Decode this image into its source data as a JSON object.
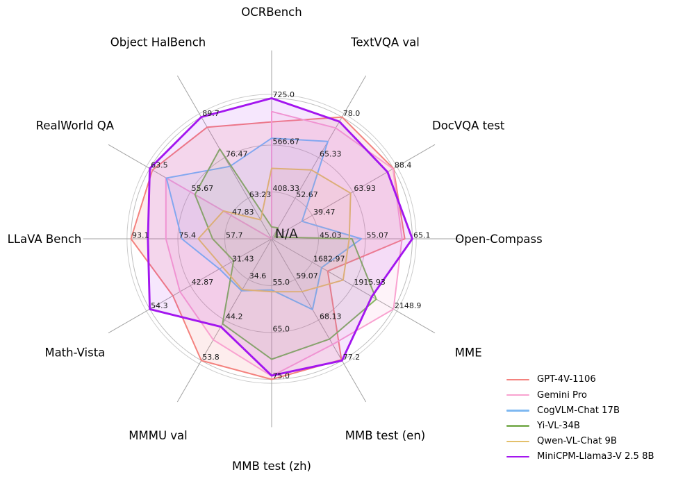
{
  "figure": {
    "background": "#ffffff",
    "center_label": "N/A"
  },
  "chart_data": {
    "type": "radar",
    "title": "",
    "center_label": "N/A",
    "grid": {
      "rings": [
        0.3333,
        0.6667,
        1.0
      ],
      "outer_boundary": 1.028,
      "ring_color": "#bdbdbd",
      "outer_boundary_color": "#cccccc",
      "spoke_color": "#a3a3a3",
      "spoke_extent": 1.34,
      "tick_color": "#1a1a1a",
      "title_color": "#000000"
    },
    "legend_position": "lower right",
    "axes": [
      {
        "label": "OCRBench",
        "min": 250,
        "max": 725.0,
        "ticks": [
          "408.33",
          "566.67",
          "725.0"
        ]
      },
      {
        "label": "TextVQA val",
        "min": 40,
        "max": 78.0,
        "ticks": [
          "52.67",
          "65.33",
          "78.0"
        ]
      },
      {
        "label": "DocVQA test",
        "min": 15,
        "max": 88.4,
        "ticks": [
          "39.47",
          "63.93",
          "88.4"
        ]
      },
      {
        "label": "Open-Compass",
        "min": 35,
        "max": 65.1,
        "ticks": [
          "45.03",
          "55.07",
          "65.1"
        ]
      },
      {
        "label": "MME",
        "min": 1450,
        "max": 2148.9,
        "ticks": [
          "1682.97",
          "1915.93",
          "2148.9"
        ]
      },
      {
        "label": "MMB test (en)",
        "min": 50,
        "max": 77.2,
        "ticks": [
          "59.07",
          "68.13",
          "77.2"
        ]
      },
      {
        "label": "MMB test (zh)",
        "min": 45,
        "max": 75.0,
        "ticks": [
          "55.0",
          "65.0",
          "75.0"
        ]
      },
      {
        "label": "MMMU val",
        "min": 25,
        "max": 53.8,
        "ticks": [
          "34.6",
          "44.2",
          "53.8"
        ]
      },
      {
        "label": "Math-Vista",
        "min": 20,
        "max": 54.3,
        "ticks": [
          "31.43",
          "42.87",
          "54.3"
        ]
      },
      {
        "label": "LLaVA Bench",
        "min": 40,
        "max": 93.1,
        "ticks": [
          "57.7",
          "75.4",
          "93.1"
        ]
      },
      {
        "label": "RealWorld QA",
        "min": 40,
        "max": 63.5,
        "ticks": [
          "47.83",
          "55.67",
          "63.5"
        ]
      },
      {
        "label": "Object HalBench",
        "min": 50,
        "max": 89.7,
        "ticks": [
          "63.23",
          "76.47",
          "89.7"
        ]
      }
    ],
    "series": [
      {
        "name": "GPT-4V-1106",
        "color": "#f4827e",
        "fill_alpha": 0.14,
        "line_width": 2,
        "values": [
          645,
          78.0,
          88.4,
          63.5,
          1771.5,
          77.0,
          75.0,
          53.8,
          47.8,
          93.1,
          63.0,
          86.4
        ]
      },
      {
        "name": "Gemini Pro",
        "color": "#f9a2d0",
        "fill_alpha": 0.13,
        "line_width": 2,
        "values": [
          680,
          74.6,
          88.1,
          62.9,
          2148.9,
          73.6,
          74.3,
          48.9,
          45.8,
          79.9,
          60.4,
          null
        ]
      },
      {
        "name": "CogVLM-Chat 17B",
        "color": "#7eb8f1",
        "fill_alpha": 0.1,
        "line_width": 2,
        "values": [
          590,
          70.4,
          33.3,
          54.2,
          1736.6,
          65.8,
          55.9,
          37.3,
          34.7,
          73.9,
          60.3,
          73.6
        ]
      },
      {
        "name": "Yi-VL-34B",
        "color": "#84b35f",
        "fill_alpha": 0.08,
        "line_width": 2,
        "values": [
          290,
          43.4,
          16.9,
          52.2,
          2050.2,
          72.4,
          70.7,
          45.1,
          30.7,
          62.3,
          54.8,
          79.3
        ]
      },
      {
        "name": "Qwen-VL-Chat 9B",
        "color": "#e3c06b",
        "fill_alpha": 0.08,
        "line_width": 2,
        "values": [
          488,
          61.5,
          62.6,
          51.6,
          1860.0,
          61.8,
          56.3,
          37.0,
          33.8,
          67.7,
          49.3,
          56.2
        ]
      },
      {
        "name": "MiniCPM-Llama3-V 2.5 8B",
        "color": "#a316ef",
        "fill_alpha": 0.1,
        "line_width": 2.9,
        "values": [
          725,
          76.6,
          84.8,
          65.1,
          2024.6,
          77.2,
          74.2,
          45.8,
          54.3,
          86.7,
          63.5,
          89.7
        ]
      }
    ]
  }
}
